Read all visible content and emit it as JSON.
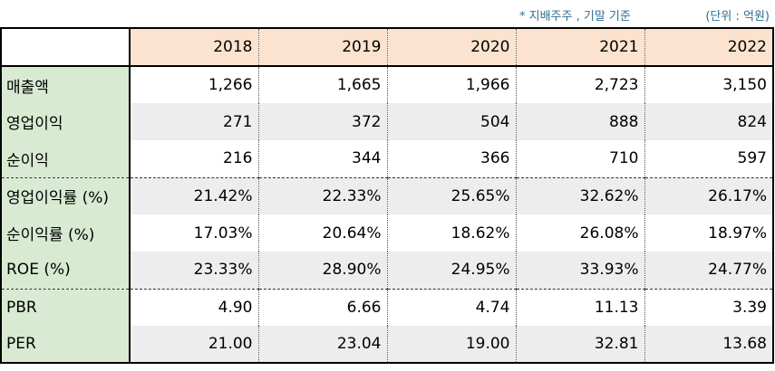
{
  "notes": {
    "basis": "* 지배주주 , 기말 기준",
    "unit": "(단위 : 억원)"
  },
  "table": {
    "years": [
      "2018",
      "2019",
      "2020",
      "2021",
      "2022"
    ],
    "rows": [
      {
        "label": "매출액",
        "values": [
          "1,266",
          "1,665",
          "1,966",
          "2,723",
          "3,150"
        ]
      },
      {
        "label": "영업이익",
        "values": [
          "271",
          "372",
          "504",
          "888",
          "824"
        ]
      },
      {
        "label": "순이익",
        "values": [
          "216",
          "344",
          "366",
          "710",
          "597"
        ]
      },
      {
        "label": "영업이익률 (%)",
        "values": [
          "21.42%",
          "22.33%",
          "25.65%",
          "32.62%",
          "26.17%"
        ]
      },
      {
        "label": "순이익률 (%)",
        "values": [
          "17.03%",
          "20.64%",
          "18.62%",
          "26.08%",
          "18.97%"
        ]
      },
      {
        "label": "ROE (%)",
        "values": [
          "23.33%",
          "28.90%",
          "24.95%",
          "33.93%",
          "24.77%"
        ]
      },
      {
        "label": "PBR",
        "values": [
          "4.90",
          "6.66",
          "4.74",
          "11.13",
          "3.39"
        ]
      },
      {
        "label": "PER",
        "values": [
          "21.00",
          "23.04",
          "19.00",
          "32.81",
          "13.68"
        ]
      }
    ]
  },
  "colors": {
    "header_bg": "#fbe3cf",
    "label_bg": "#d9ead3",
    "alt_row_bg": "#ededed",
    "note_text": "#2e6f8e"
  }
}
